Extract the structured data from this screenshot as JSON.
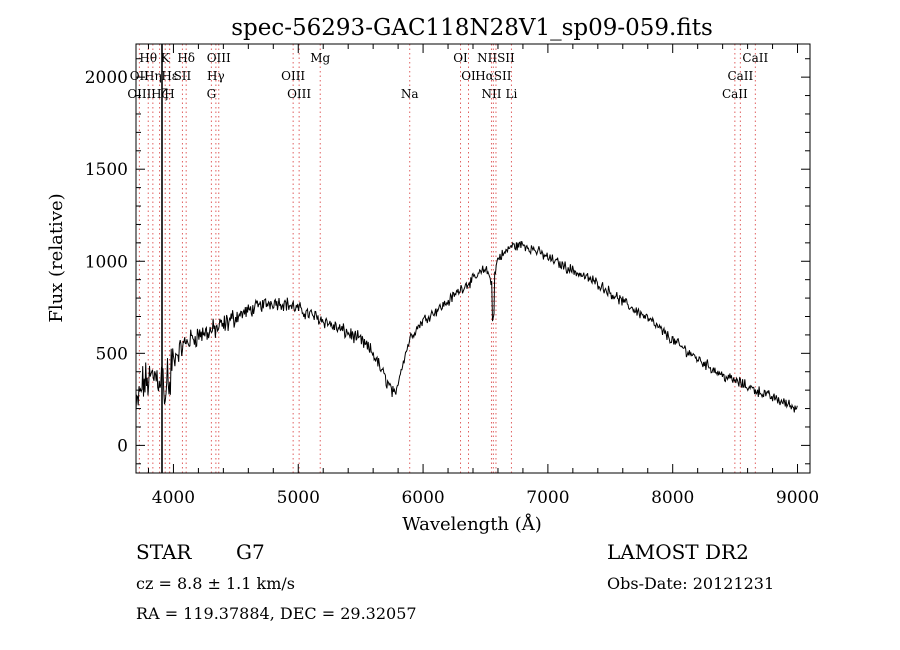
{
  "chart_data": {
    "type": "line",
    "title": "spec-56293-GAC118N28V1_sp09-059.fits",
    "xlabel": "Wavelength (Å)",
    "ylabel": "Flux (relative)",
    "xlim": [
      3700,
      9100
    ],
    "ylim": [
      -150,
      2180
    ],
    "xticks": [
      4000,
      5000,
      6000,
      7000,
      8000,
      9000
    ],
    "yticks": [
      0,
      500,
      1000,
      1500,
      2000
    ],
    "grid": false,
    "series": [
      {
        "values_desc": "continuum anchors (wavelength Å, relative flux)",
        "x": [
          3700,
          3750,
          3800,
          3850,
          3900,
          3950,
          4000,
          4100,
          4200,
          4300,
          4400,
          4500,
          4600,
          4700,
          4800,
          4900,
          5000,
          5100,
          5200,
          5300,
          5400,
          5500,
          5600,
          5700,
          5750,
          5780,
          5800,
          5850,
          5900,
          6000,
          6100,
          6200,
          6300,
          6400,
          6500,
          6560,
          6600,
          6650,
          6700,
          6800,
          6900,
          7000,
          7200,
          7400,
          7600,
          7800,
          8000,
          8200,
          8400,
          8600,
          8800,
          9000
        ],
        "y": [
          180,
          330,
          350,
          380,
          370,
          390,
          470,
          560,
          600,
          620,
          650,
          700,
          730,
          760,
          780,
          770,
          740,
          710,
          680,
          640,
          610,
          570,
          500,
          360,
          300,
          250,
          350,
          480,
          590,
          680,
          730,
          780,
          850,
          900,
          960,
          880,
          1020,
          1040,
          1080,
          1090,
          1060,
          1020,
          950,
          880,
          780,
          690,
          570,
          470,
          380,
          320,
          260,
          200
        ]
      }
    ],
    "spectral_lines": [
      {
        "label": "Hθ",
        "wave": 3798,
        "row": 0
      },
      {
        "label": "K",
        "wave": 3934,
        "row": 0
      },
      {
        "label": "Hδ",
        "wave": 4102,
        "row": 0
      },
      {
        "label": "OIII",
        "wave": 4363,
        "row": 0
      },
      {
        "label": "Mg",
        "wave": 5176,
        "row": 0
      },
      {
        "label": "OI",
        "wave": 6300,
        "row": 0
      },
      {
        "label": "NIISII",
        "wave": 6584,
        "row": 0
      },
      {
        "label": "CaII",
        "wave": 8662,
        "row": 0
      },
      {
        "label": "OII",
        "wave": 3727,
        "row": 1
      },
      {
        "label": "Hη",
        "wave": 3835,
        "row": 1
      },
      {
        "label": "Hε",
        "wave": 3970,
        "row": 1
      },
      {
        "label": "SII",
        "wave": 4072,
        "row": 1
      },
      {
        "label": "Hγ",
        "wave": 4340,
        "row": 1
      },
      {
        "label": "OIII",
        "wave": 4959,
        "row": 1
      },
      {
        "label": "OI",
        "wave": 6364,
        "row": 1
      },
      {
        "label": "HαSII",
        "wave": 6563,
        "row": 1
      },
      {
        "label": "CaII",
        "wave": 8542,
        "row": 1
      },
      {
        "label": "OIII",
        "wave": 3727,
        "row": 2
      },
      {
        "label": "Hζ",
        "wave": 3889,
        "row": 2
      },
      {
        "label": "H",
        "wave": 3968,
        "row": 2
      },
      {
        "label": "G",
        "wave": 4304,
        "row": 2
      },
      {
        "label": "OIII",
        "wave": 5007,
        "row": 2
      },
      {
        "label": "Na",
        "wave": 5893,
        "row": 2
      },
      {
        "label": "NII",
        "wave": 6548,
        "row": 2
      },
      {
        "label": "Li",
        "wave": 6708,
        "row": 2
      },
      {
        "label": "CaII",
        "wave": 8498,
        "row": 2
      }
    ],
    "line_colors": {
      "data": "#000000",
      "marker": "#e06060"
    }
  },
  "info": {
    "class_label": "STAR",
    "subclass": "G7",
    "survey": "LAMOST DR2",
    "cz": "cz = 8.8 ± 1.1 km/s",
    "obs_date": "Obs-Date: 20121231",
    "coords": "RA = 119.37884, DEC =  29.32057"
  }
}
